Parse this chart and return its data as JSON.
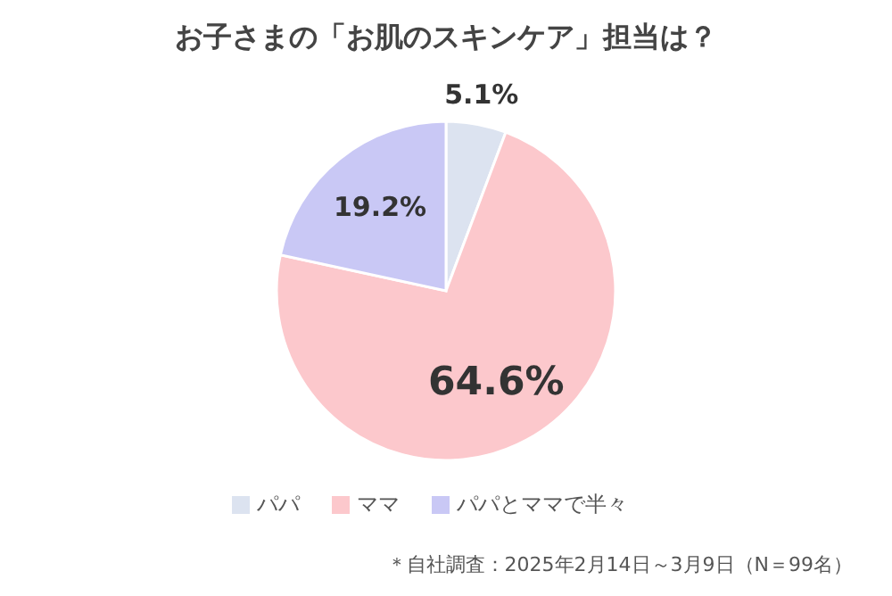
{
  "chart_data": {
    "type": "pie",
    "title": "お子さまの「お肌のスキンケア」担当は？",
    "categories": [
      "パパ",
      "ママ",
      "パパとママで半々"
    ],
    "values": [
      5.1,
      64.6,
      19.2
    ],
    "value_labels": [
      "5.1%",
      "64.6%",
      "19.2%"
    ],
    "colors": [
      "#dce3f0",
      "#fcc8cc",
      "#c9c8f5"
    ],
    "legend": "bottom",
    "annotations": [
      "＊自社調査：2025年2月14日～3月9日（N＝99名）"
    ]
  }
}
